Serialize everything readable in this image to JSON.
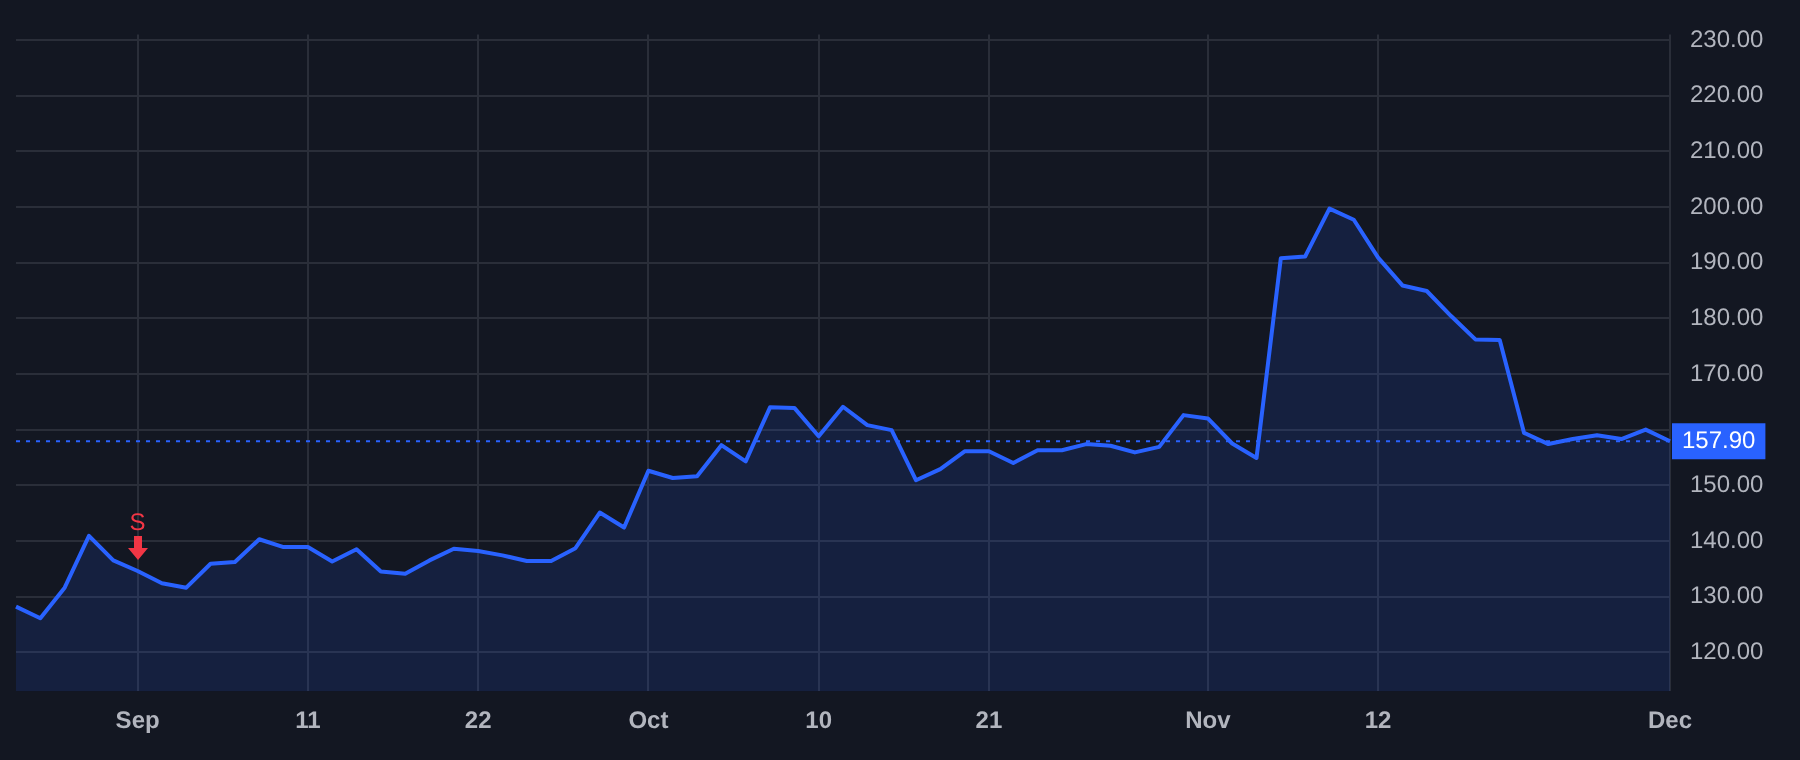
{
  "chart_data": {
    "type": "area",
    "categories": [
      null,
      null,
      null,
      null,
      null,
      "Sep",
      null,
      null,
      null,
      null,
      null,
      null,
      "11",
      null,
      null,
      null,
      null,
      null,
      null,
      "22",
      null,
      null,
      null,
      null,
      null,
      null,
      "Oct",
      null,
      null,
      null,
      null,
      null,
      null,
      "10",
      null,
      null,
      null,
      null,
      null,
      null,
      "21",
      null,
      null,
      null,
      null,
      null,
      null,
      null,
      null,
      "Nov",
      null,
      null,
      null,
      null,
      null,
      null,
      "12",
      null,
      null,
      null,
      null,
      null,
      null,
      null,
      null,
      null,
      null,
      null,
      "Dec"
    ],
    "series": [
      {
        "color": "#2962ff",
        "values": [
          128.2,
          126.1,
          131.6,
          140.9,
          136.5,
          134.6,
          132.4,
          131.6,
          135.9,
          136.2,
          140.3,
          138.9,
          138.9,
          136.3,
          138.5,
          134.5,
          134.1,
          136.5,
          138.6,
          138.2,
          137.4,
          136.4,
          136.4,
          138.7,
          145.1,
          142.4,
          152.6,
          151.3,
          151.6,
          157.2,
          154.3,
          164.0,
          163.9,
          158.8,
          164.1,
          160.8,
          159.9,
          150.9,
          152.9,
          156.1,
          156.1,
          154.0,
          156.3,
          156.3,
          157.4,
          157.1,
          155.9,
          156.9,
          162.6,
          162.0,
          157.5,
          154.9,
          190.8,
          191.1,
          199.7,
          197.7,
          190.9,
          185.9,
          184.9,
          180.4,
          176.2,
          176.1,
          159.4,
          157.4,
          158.3,
          159.0,
          158.3,
          160.0,
          157.9
        ]
      }
    ],
    "ylim": [
      113,
      231
    ],
    "yticks": [
      {
        "value": 120,
        "label": "120.00"
      },
      {
        "value": 130,
        "label": "130.00"
      },
      {
        "value": 140,
        "label": "140.00"
      },
      {
        "value": 150,
        "label": "150.00"
      },
      {
        "value": 160,
        "label": null
      },
      {
        "value": 170,
        "label": "170.00"
      },
      {
        "value": 180,
        "label": "180.00"
      },
      {
        "value": 190,
        "label": "190.00"
      },
      {
        "value": 200,
        "label": "200.00"
      },
      {
        "value": 210,
        "label": "210.00"
      },
      {
        "value": 220,
        "label": "220.00"
      },
      {
        "value": 230,
        "label": "230.00"
      }
    ],
    "ref_lines": [
      {
        "axis": "y",
        "value": 157.9,
        "label": "157.90",
        "color": "#2962ff",
        "line_style": "dotted"
      }
    ],
    "annotations": [
      {
        "text": "S",
        "x": "Sep",
        "y": 134.6
      }
    ],
    "grid": true,
    "legend": false,
    "marker": "none",
    "line_style": "solid"
  }
}
